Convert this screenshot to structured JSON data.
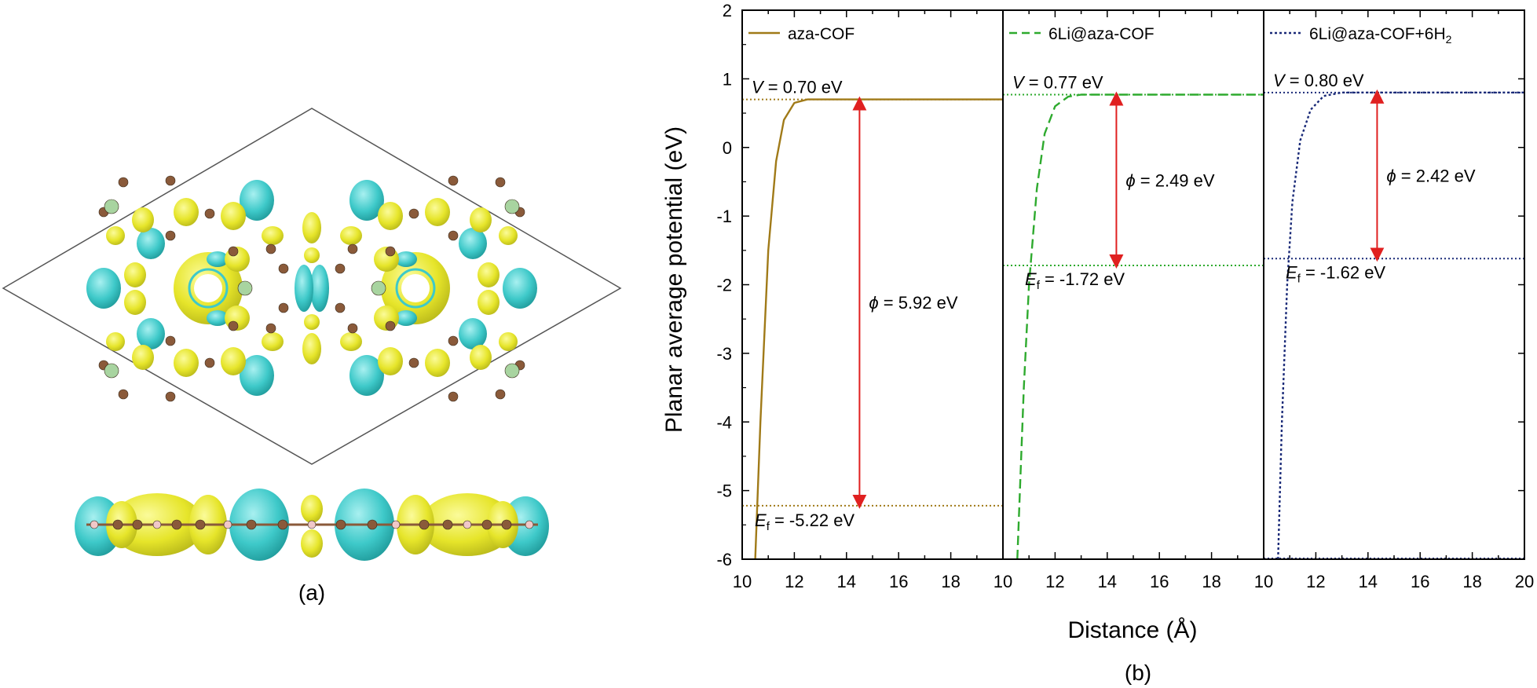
{
  "panel_a": {
    "label": "(a)",
    "colors": {
      "yellow": "#e9e82a",
      "cyan": "#3ec9c9",
      "carbon": "#8a5a3a",
      "lithium": "#a8d4a0",
      "hydrogen": "#f0c8c8",
      "cell": "#444444"
    }
  },
  "panel_b": {
    "label": "(b)",
    "xlabel": "Distance (Å)",
    "ylabel": "Planar average potential (eV)",
    "y_ticks": [
      "2",
      "1",
      "0",
      "-1",
      "-2",
      "-3",
      "-4",
      "-5",
      "-6"
    ],
    "x_ticks_sub": [
      "10",
      "12",
      "14",
      "16",
      "18"
    ],
    "x_tick_last": "20"
  },
  "chart_data": {
    "type": "line",
    "ylim": [
      -6,
      2
    ],
    "xlim_per_subplot": [
      10,
      20
    ],
    "subplots": [
      {
        "legend": "aza-COF",
        "color": "#a07a18",
        "dash": "solid",
        "vacuum_level": 0.7,
        "fermi_level": -5.22,
        "V_label": "= 0.70 eV",
        "Ef_label": "= -5.22 eV",
        "phi_label": "= 5.92 eV",
        "curve_x": [
          10.5,
          10.7,
          11.0,
          11.3,
          11.6,
          12.0,
          12.5,
          13.0,
          14.0,
          16.0,
          18.0,
          20.0
        ],
        "curve_y": [
          -6.0,
          -4.0,
          -1.5,
          -0.2,
          0.4,
          0.65,
          0.7,
          0.7,
          0.7,
          0.7,
          0.7,
          0.7
        ]
      },
      {
        "legend": "6Li@aza-COF",
        "color": "#2eaa2e",
        "dash": "dashed",
        "vacuum_level": 0.77,
        "fermi_level": -1.72,
        "V_label": "= 0.77 eV",
        "Ef_label": "= -1.72 eV",
        "phi_label": "= 2.49 eV",
        "curve_x": [
          10.55,
          10.8,
          11.0,
          11.3,
          11.6,
          12.0,
          12.5,
          13.0,
          14.0,
          16.0,
          18.0,
          20.0
        ],
        "curve_y": [
          -6.0,
          -3.5,
          -2.0,
          -0.6,
          0.2,
          0.6,
          0.74,
          0.77,
          0.77,
          0.77,
          0.77,
          0.77
        ]
      },
      {
        "legend": "6Li@aza-COF+6H",
        "legend_sub": "2",
        "color": "#1a2a78",
        "dash": "dotted",
        "vacuum_level": 0.8,
        "fermi_level": -1.62,
        "V_label": "= 0.80 eV",
        "Ef_label": "= -1.62 eV",
        "phi_label": "= 2.42 eV",
        "curve_x": [
          10.55,
          10.7,
          10.9,
          11.1,
          11.4,
          11.8,
          12.3,
          13.0,
          14.0,
          16.0,
          18.0,
          20.0
        ],
        "curve_y": [
          -6.0,
          -4.0,
          -2.0,
          -0.8,
          0.1,
          0.55,
          0.75,
          0.8,
          0.8,
          0.8,
          0.8,
          0.8
        ]
      }
    ]
  }
}
